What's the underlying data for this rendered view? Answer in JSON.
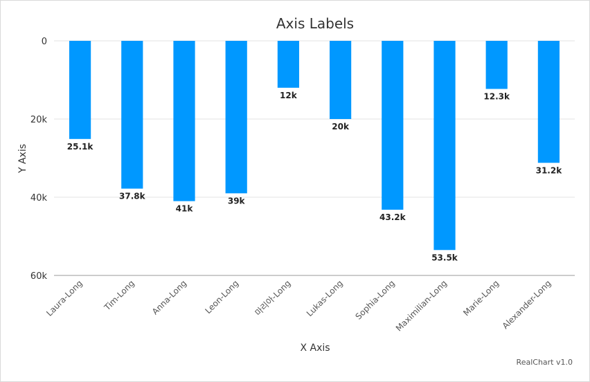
{
  "chart_data": {
    "type": "bar",
    "title": "Axis Labels",
    "xlabel": "X Axis",
    "ylabel": "Y Axis",
    "categories": [
      "Laura-Long",
      "Tim-Long",
      "Anna-Long",
      "Leon-Long",
      "마리아-Long",
      "Lukas-Long",
      "Sophia-Long",
      "Maximilian-Long",
      "Marie-Long",
      "Alexander-Long"
    ],
    "values": [
      25100,
      37800,
      41000,
      39000,
      12000,
      20000,
      43200,
      53500,
      12300,
      31200
    ],
    "data_labels": [
      "25.1k",
      "37.8k",
      "41k",
      "39k",
      "12k",
      "20k",
      "43.2k",
      "53.5k",
      "12.3k",
      "31.2k"
    ],
    "ylim": [
      0,
      60000
    ],
    "y_reversed": true,
    "yticks": [
      0,
      20000,
      40000,
      60000
    ],
    "ytick_labels": [
      "0",
      "20k",
      "40k",
      "60k"
    ],
    "grid": true,
    "bar_color": "#0098ff",
    "legend": "none"
  },
  "credit": "RealChart v1.0"
}
